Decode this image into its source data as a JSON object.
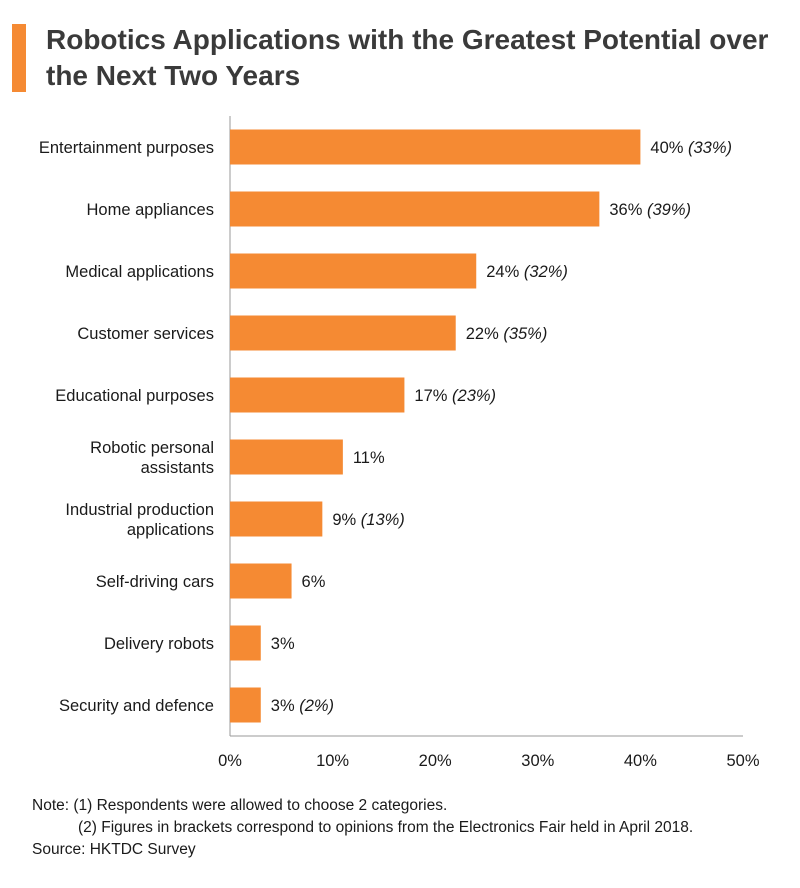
{
  "title": "Robotics Applications with the Greatest Potential over the Next Two Years",
  "colors": {
    "bar": "#f58a33",
    "accent": "#f58a33",
    "axis": "#9a9a9a"
  },
  "chart_data": {
    "type": "bar",
    "orientation": "horizontal",
    "title": "Robotics Applications with the Greatest Potential over the Next Two Years",
    "categories": [
      [
        "Entertainment purposes"
      ],
      [
        "Home appliances"
      ],
      [
        "Medical applications"
      ],
      [
        "Customer services"
      ],
      [
        "Educational purposes"
      ],
      [
        "Robotic personal",
        "assistants"
      ],
      [
        "Industrial production",
        "applications"
      ],
      [
        "Self-driving cars"
      ],
      [
        "Delivery robots"
      ],
      [
        "Security and defence"
      ]
    ],
    "values": [
      40,
      36,
      24,
      22,
      17,
      11,
      9,
      6,
      3,
      3
    ],
    "bracket_values": [
      "(33%)",
      "(39%)",
      "(32%)",
      "(35%)",
      "(23%)",
      null,
      "(13%)",
      null,
      null,
      "(2%)"
    ],
    "unit": "%",
    "xlim": [
      0,
      50
    ],
    "xticks": [
      "0%",
      "10%",
      "20%",
      "30%",
      "40%",
      "50%"
    ],
    "grid": false,
    "legend": false
  },
  "notes": {
    "line1": "Note: (1) Respondents were allowed to choose 2 categories.",
    "line2": "(2) Figures in brackets correspond to opinions from the Electronics Fair held in April 2018.",
    "source": "Source: HKTDC Survey"
  }
}
